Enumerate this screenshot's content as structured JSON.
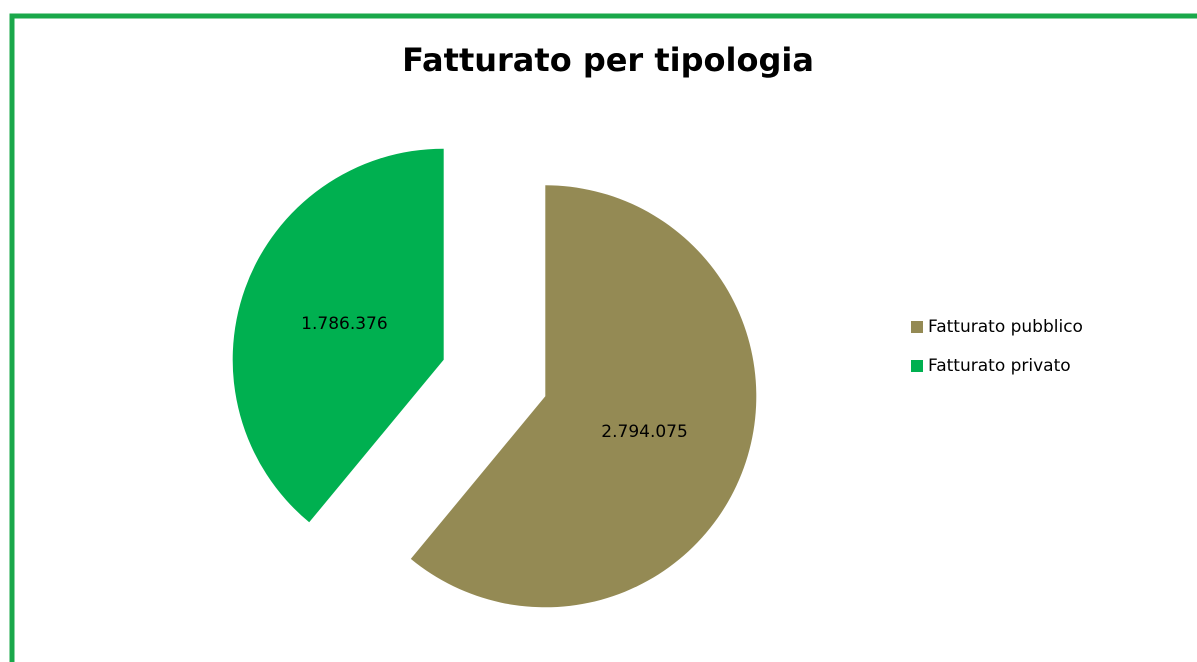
{
  "chart_data": {
    "type": "pie",
    "title": "Fatturato per tipologia",
    "categories": [
      "Fatturato pubblico",
      "Fatturato privato"
    ],
    "values": [
      2794075,
      1786376
    ],
    "value_labels": [
      "2.794.075",
      "1.786.376"
    ],
    "colors": [
      "#948a54",
      "#00b050"
    ],
    "legend": "right"
  }
}
